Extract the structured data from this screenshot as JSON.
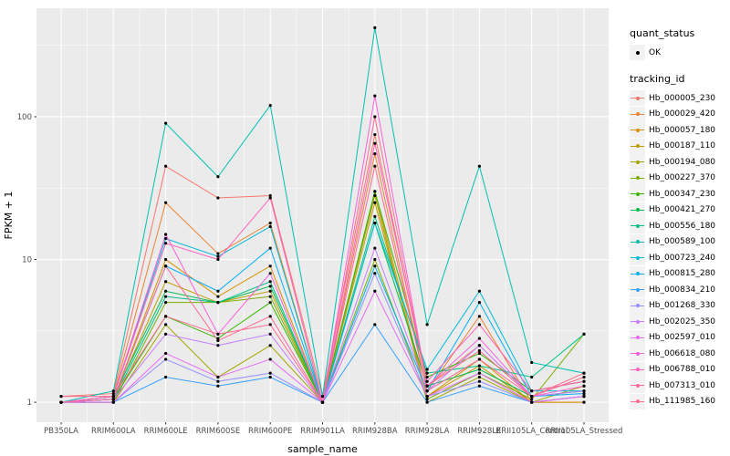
{
  "legend": {
    "quant_status_title": "quant_status",
    "quant_status_items": [
      {
        "label": "OK",
        "shape": "point",
        "color": "#000000"
      }
    ],
    "tracking_id_title": "tracking_id"
  },
  "chart_data": {
    "type": "line",
    "title": "",
    "xlabel": "sample_name",
    "ylabel": "FPKM + 1",
    "y_scale": "log10",
    "y_ticks": [
      1,
      10,
      100
    ],
    "ylim_log10": [
      -0.14,
      2.76
    ],
    "panel_background": "#EBEBEB",
    "gridline_color": "#FFFFFF",
    "point_color": "#000000",
    "legend_position": "right",
    "categories": [
      "PB350LA",
      "RRIM600LA",
      "RRIM600LE",
      "RRIM600SE",
      "RRIM600PE",
      "RRIM901LA",
      "RRIM928BA",
      "RRIM928LA",
      "RRIM928LE",
      "RRII105LA_Control",
      "RRII105LA_Stressed"
    ],
    "series": [
      {
        "name": "Hb_000005_230",
        "color": "#F8766D",
        "values": [
          1.1,
          1.15,
          45,
          27,
          28,
          1.1,
          75,
          1.3,
          2.5,
          1.1,
          1.5
        ]
      },
      {
        "name": "Hb_000029_420",
        "color": "#EA8331",
        "values": [
          1,
          1.1,
          25,
          11,
          18,
          1,
          55,
          1.2,
          4,
          1,
          1
        ]
      },
      {
        "name": "Hb_000057_180",
        "color": "#D89000",
        "values": [
          1,
          1.05,
          10,
          5.5,
          9,
          1,
          30,
          1.1,
          2,
          1,
          1
        ]
      },
      {
        "name": "Hb_000187_110",
        "color": "#C09B00",
        "values": [
          1,
          1.05,
          7,
          5,
          6,
          1,
          25,
          1.1,
          1.8,
          1,
          1.1
        ]
      },
      {
        "name": "Hb_000194_080",
        "color": "#A3A500",
        "values": [
          1,
          1,
          3.5,
          1.5,
          2.5,
          1,
          28,
          1,
          1.5,
          1,
          1.3
        ]
      },
      {
        "name": "Hb_000227_370",
        "color": "#7CAE00",
        "values": [
          1,
          1,
          5,
          5,
          5.5,
          1,
          10,
          1.05,
          1.6,
          1.05,
          3
        ]
      },
      {
        "name": "Hb_000347_230",
        "color": "#39B600",
        "values": [
          1,
          1.05,
          4,
          2.8,
          5,
          1,
          30,
          1.5,
          2.2,
          1.2,
          1.4
        ]
      },
      {
        "name": "Hb_000421_270",
        "color": "#00BB4E",
        "values": [
          1,
          1.1,
          6,
          5,
          6.5,
          1,
          18,
          1.3,
          1.7,
          1.1,
          1.2
        ]
      },
      {
        "name": "Hb_000556_180",
        "color": "#00C087",
        "values": [
          1,
          1.05,
          5.5,
          5,
          7,
          1,
          20,
          1.6,
          1.8,
          1.5,
          3
        ]
      },
      {
        "name": "Hb_000589_100",
        "color": "#00C0B2",
        "values": [
          1,
          1.2,
          90,
          38,
          120,
          1.1,
          420,
          3.5,
          45,
          1.9,
          1.6
        ]
      },
      {
        "name": "Hb_000723_240",
        "color": "#00BCD8",
        "values": [
          1,
          1.1,
          14,
          10.5,
          17,
          1,
          18,
          1.7,
          6,
          1.2,
          1.2
        ]
      },
      {
        "name": "Hb_000815_280",
        "color": "#00B0F6",
        "values": [
          1,
          1.05,
          9,
          6,
          12,
          1,
          9,
          1.2,
          5,
          1.1,
          1.15
        ]
      },
      {
        "name": "Hb_000834_210",
        "color": "#35A2FF",
        "values": [
          1,
          1,
          1.5,
          1.3,
          1.5,
          1,
          3.5,
          1,
          1.3,
          1,
          1.1
        ]
      },
      {
        "name": "Hb_001268_330",
        "color": "#9590FF",
        "values": [
          1,
          1,
          2,
          1.4,
          1.6,
          1,
          8,
          1.1,
          1.4,
          1,
          1.1
        ]
      },
      {
        "name": "Hb_002025_350",
        "color": "#C77CFF",
        "values": [
          1,
          1.05,
          3,
          2.5,
          3,
          1,
          12,
          1.2,
          2.5,
          1.1,
          1.2
        ]
      },
      {
        "name": "Hb_002597_010",
        "color": "#E76BF3",
        "values": [
          1,
          1,
          2.2,
          1.5,
          2,
          1,
          6,
          1.1,
          1.6,
          1,
          1.1
        ]
      },
      {
        "name": "Hb_006618_080",
        "color": "#FA62DB",
        "values": [
          1,
          1.1,
          15,
          3,
          8,
          1,
          140,
          1.3,
          2.8,
          1.1,
          1.3
        ]
      },
      {
        "name": "Hb_006788_010",
        "color": "#FF62BC",
        "values": [
          1,
          1.1,
          13,
          10,
          27,
          1,
          65,
          1.4,
          3.5,
          1.2,
          1.4
        ]
      },
      {
        "name": "Hb_007313_010",
        "color": "#FF6A98",
        "values": [
          1,
          1.05,
          9,
          2.7,
          4,
          1,
          45,
          1.2,
          2,
          1.1,
          1.5
        ]
      },
      {
        "name": "Hb_111985_160",
        "color": "#FF6C91",
        "values": [
          1.1,
          1.1,
          4,
          3,
          3.5,
          1,
          100,
          1.3,
          2.3,
          1.1,
          1.6
        ]
      }
    ]
  }
}
